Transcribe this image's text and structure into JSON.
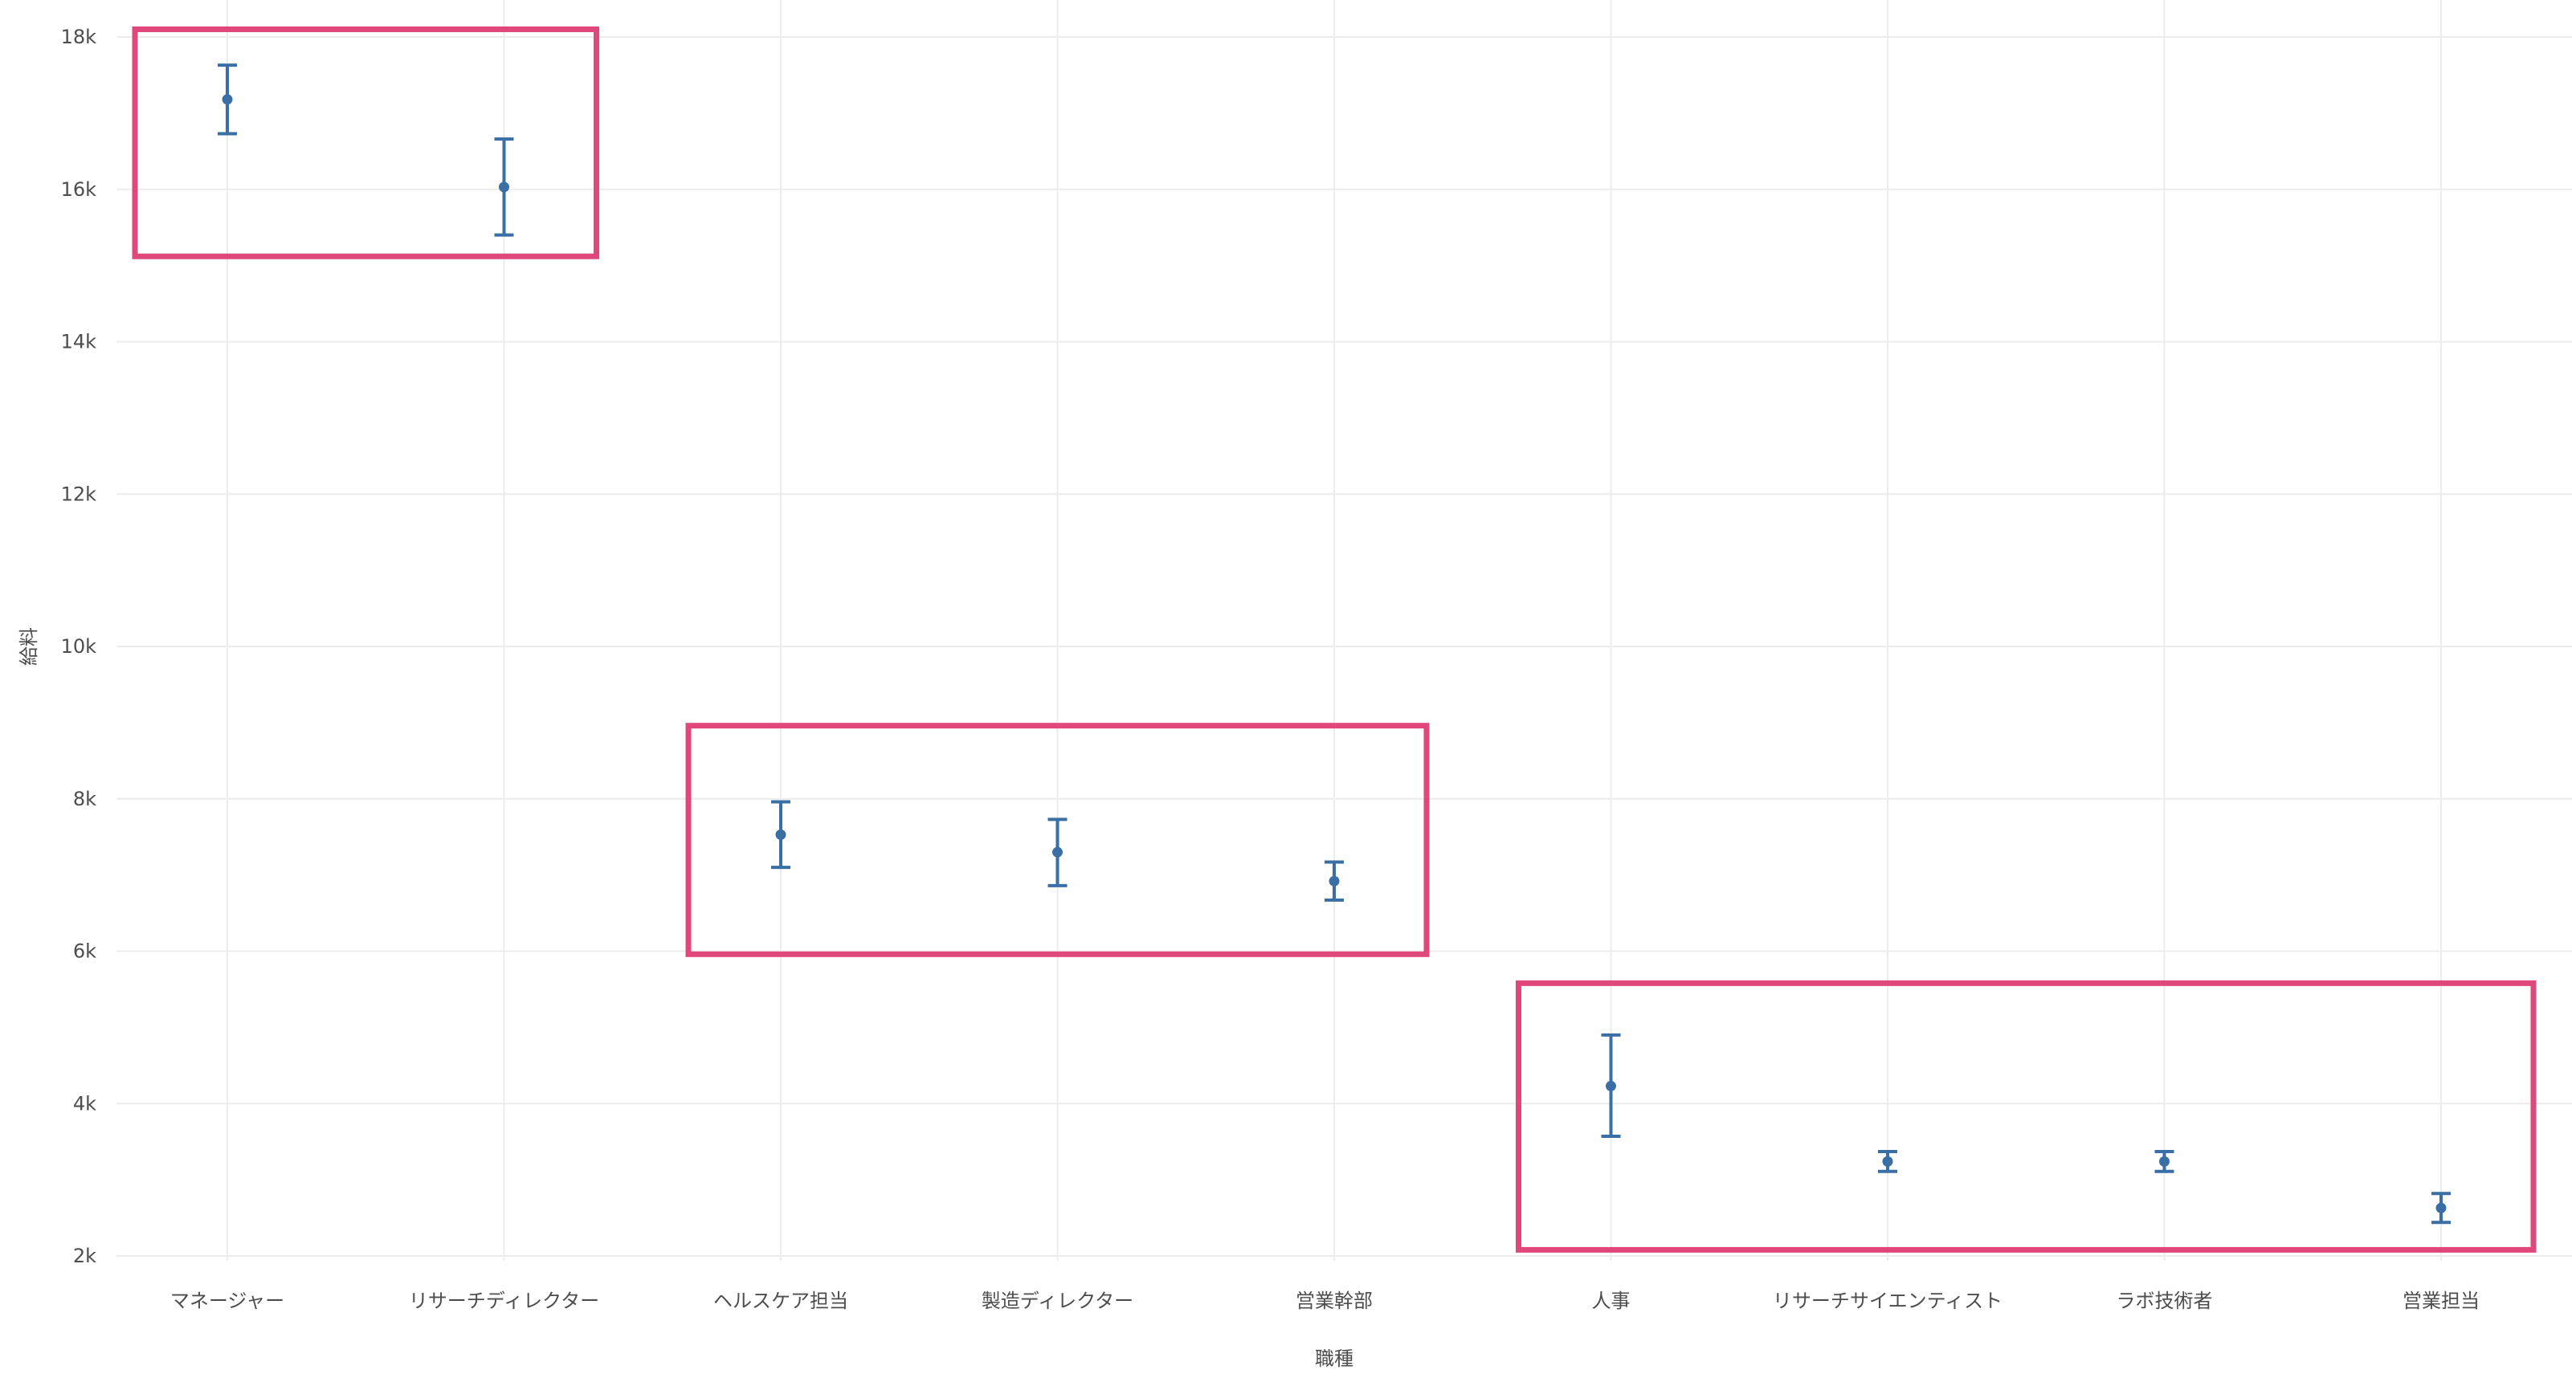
{
  "chart_data": {
    "type": "errorbar",
    "title": "",
    "xlabel": "職種",
    "ylabel": "給料",
    "ylim": [
      2000,
      18000
    ],
    "yticks": [
      2000,
      4000,
      6000,
      8000,
      10000,
      12000,
      14000,
      16000,
      18000
    ],
    "ytick_labels": [
      "2k",
      "4k",
      "6k",
      "8k",
      "10k",
      "12k",
      "14k",
      "16k",
      "18k"
    ],
    "grid": true,
    "categories": [
      "マネージャー",
      "リサーチディレクター",
      "ヘルスケア担当",
      "製造ディレクター",
      "営業幹部",
      "人事",
      "リサーチサイエンティスト",
      "ラボ技術者",
      "営業担当"
    ],
    "series": [
      {
        "mean": [
          17180,
          16030,
          7530,
          7300,
          6920,
          4230,
          3240,
          3240,
          2630
        ],
        "lower": [
          16730,
          15400,
          7100,
          6860,
          6670,
          3570,
          3110,
          3110,
          2440
        ],
        "upper": [
          17630,
          16660,
          7960,
          7730,
          7170,
          4900,
          3370,
          3370,
          2820
        ]
      }
    ],
    "colors": {
      "series": "#3a6fa5",
      "highlight": "#e0477a",
      "grid": "#ececec",
      "text": "#4d4d4d"
    },
    "highlight_groups": [
      {
        "from_category": 0,
        "to_category": 1,
        "y_range": [
          15120,
          18100
        ]
      },
      {
        "from_category": 2,
        "to_category": 4,
        "y_range": [
          5960,
          8960
        ]
      },
      {
        "from_category": 5,
        "to_category": 8,
        "y_range": [
          2080,
          5580
        ]
      }
    ]
  }
}
